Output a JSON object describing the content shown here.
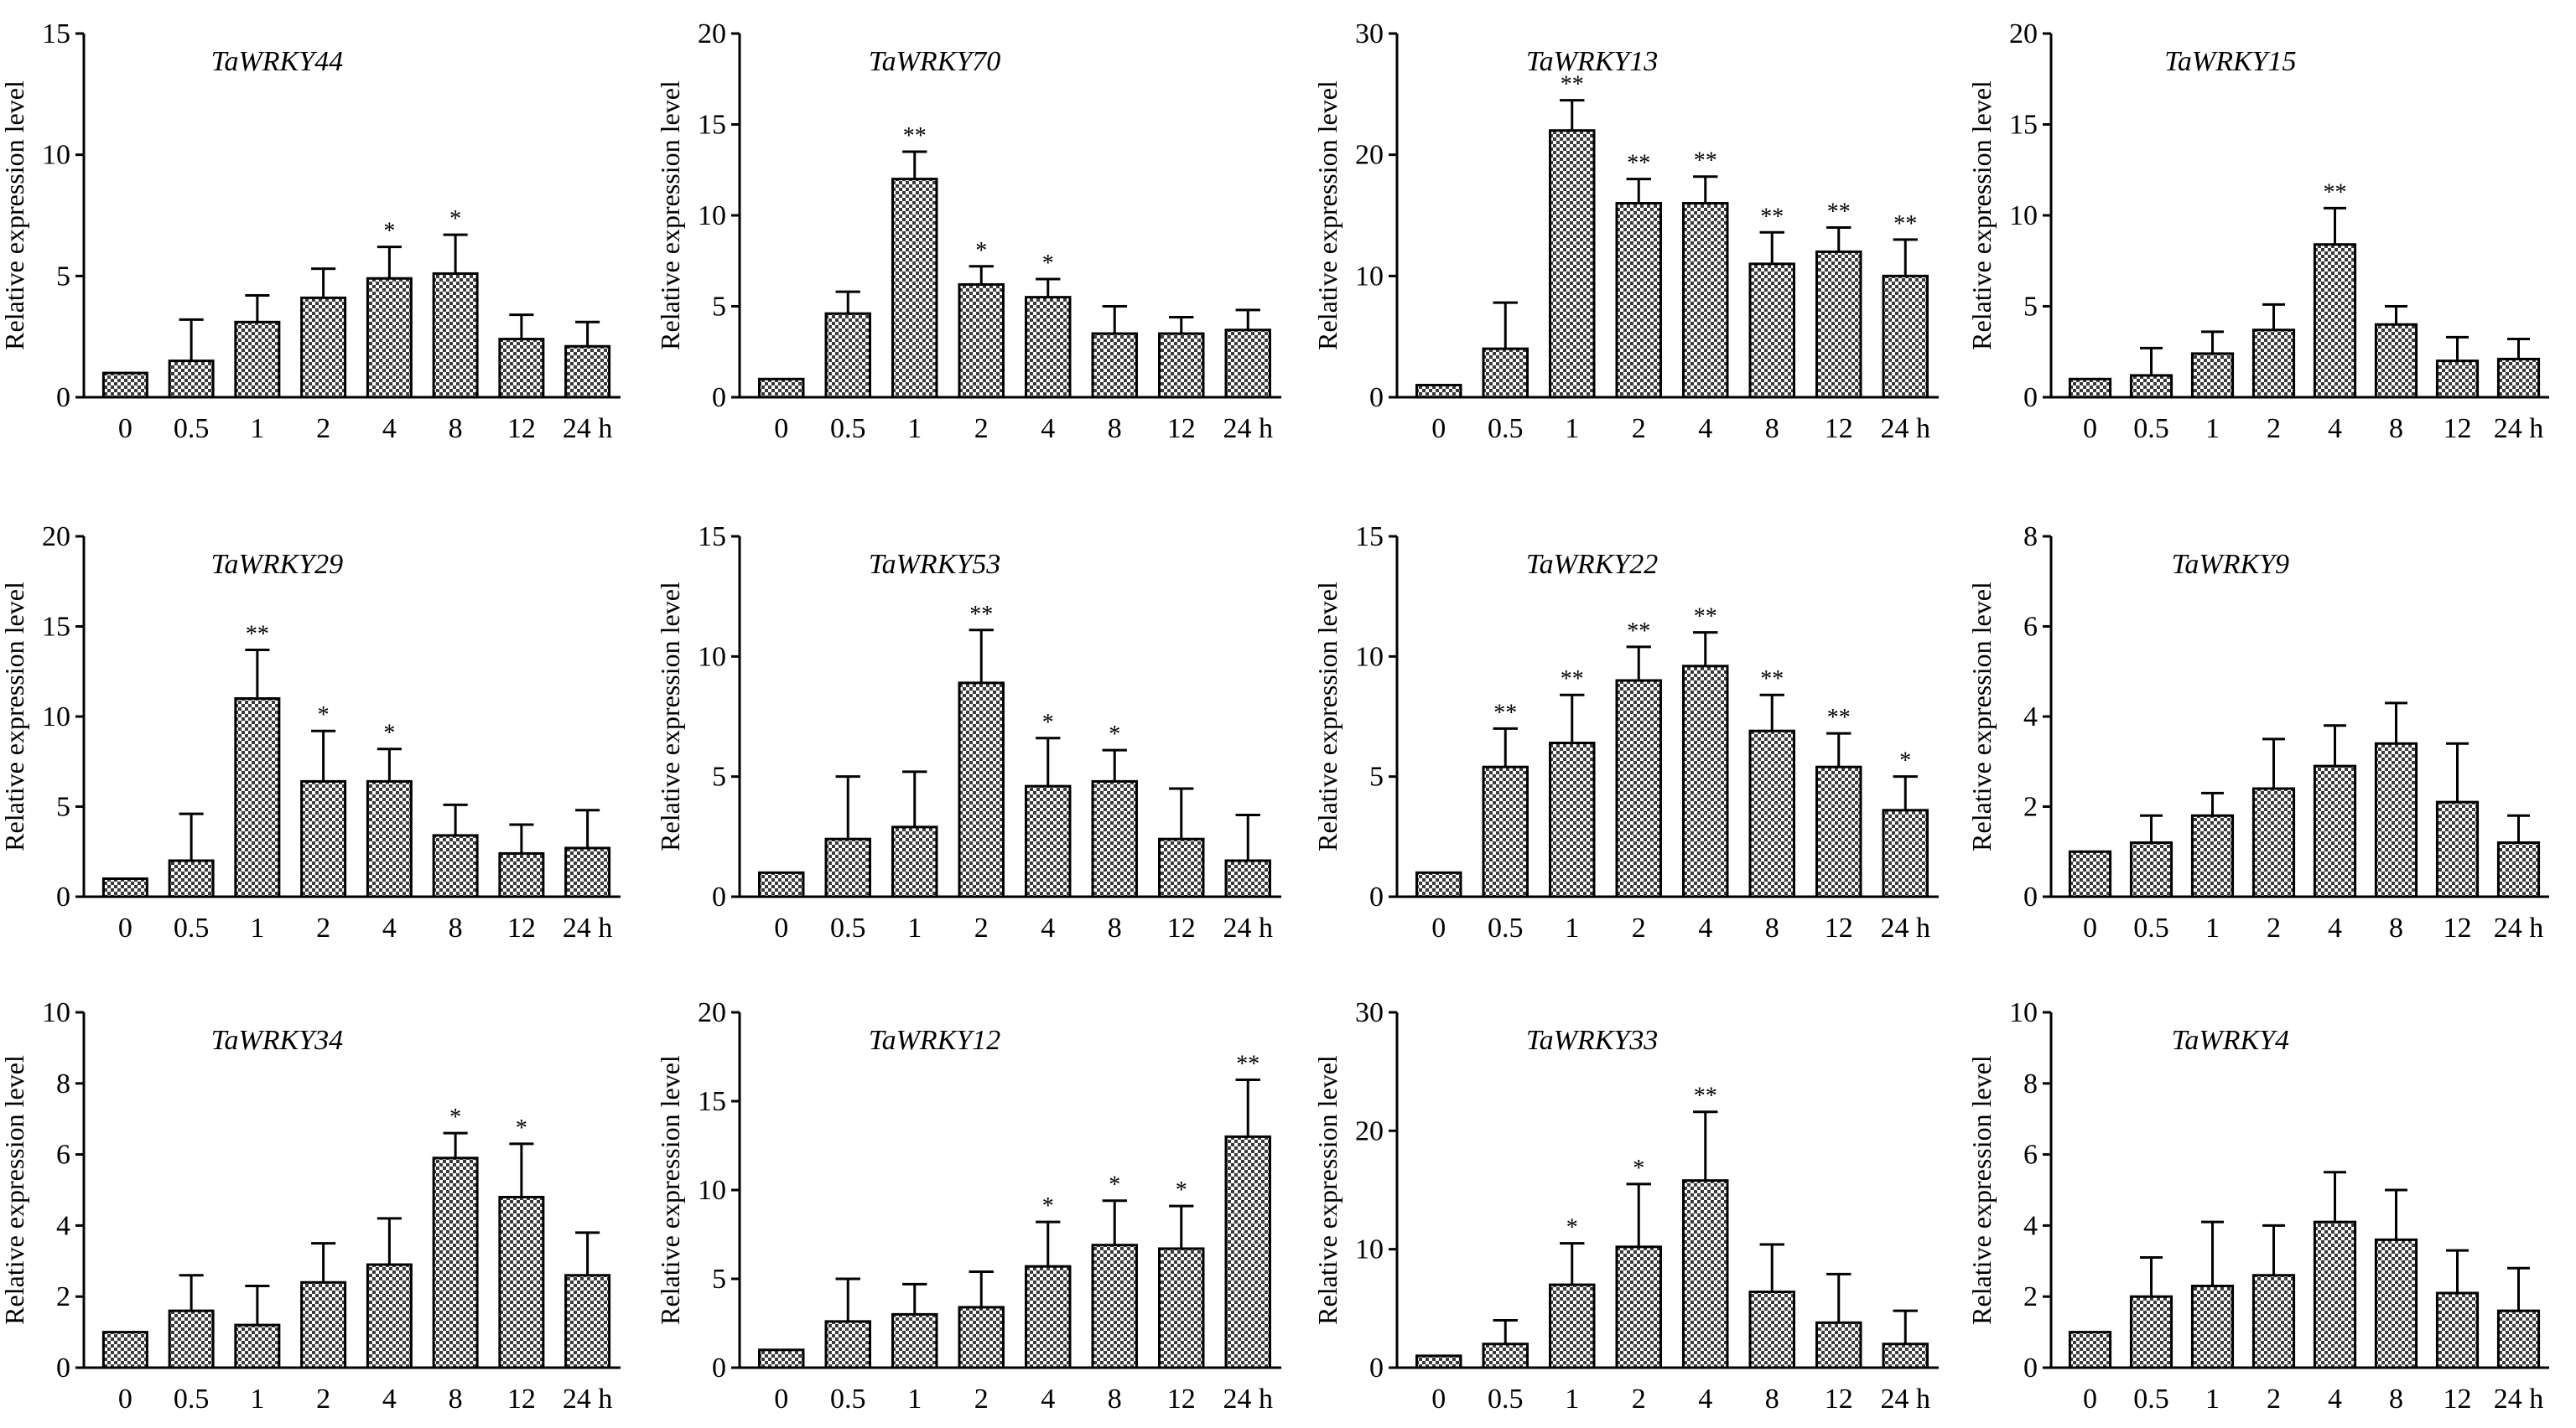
{
  "style": {
    "bar_fill": "#c8c8c8",
    "bar_stroke": "#000000",
    "axis_color": "#000000",
    "pattern": "checkered"
  },
  "chart_data": [
    {
      "type": "bar",
      "title": "TaWRKY44",
      "ylabel": "Relative expression level",
      "categories": [
        "0",
        "0.5",
        "1",
        "2",
        "4",
        "8",
        "12",
        "24 h"
      ],
      "ylim": [
        0,
        15
      ],
      "yticks": [
        0,
        5,
        10,
        15
      ],
      "values": [
        1,
        1.5,
        3.1,
        4.1,
        4.9,
        5.1,
        2.4,
        2.1
      ],
      "errors": [
        0,
        1.7,
        1.1,
        1.2,
        1.3,
        1.6,
        1.0,
        1.0
      ],
      "significance": [
        "",
        "",
        "",
        "",
        "*",
        "*",
        "",
        ""
      ]
    },
    {
      "type": "bar",
      "title": "TaWRKY70",
      "ylabel": "Relative expression level",
      "categories": [
        "0",
        "0.5",
        "1",
        "2",
        "4",
        "8",
        "12",
        "24 h"
      ],
      "ylim": [
        0,
        20
      ],
      "yticks": [
        0,
        5,
        10,
        15,
        20
      ],
      "values": [
        1,
        4.6,
        12,
        6.2,
        5.5,
        3.5,
        3.5,
        3.7
      ],
      "errors": [
        0,
        1.2,
        1.5,
        1.0,
        1.0,
        1.5,
        0.9,
        1.1
      ],
      "significance": [
        "",
        "",
        "**",
        "*",
        "*",
        "",
        "",
        ""
      ]
    },
    {
      "type": "bar",
      "title": "TaWRKY13",
      "ylabel": "Relative expression level",
      "categories": [
        "0",
        "0.5",
        "1",
        "2",
        "4",
        "8",
        "12",
        "24 h"
      ],
      "ylim": [
        0,
        30
      ],
      "yticks": [
        0,
        10,
        20,
        30
      ],
      "values": [
        1,
        4,
        22,
        16,
        16,
        11,
        12,
        10
      ],
      "errors": [
        0,
        3.8,
        2.5,
        2.0,
        2.2,
        2.6,
        2.0,
        3.0
      ],
      "significance": [
        "",
        "",
        "**",
        "**",
        "**",
        "**",
        "**",
        "**"
      ]
    },
    {
      "type": "bar",
      "title": "TaWRKY15",
      "ylabel": "Relative expression level",
      "categories": [
        "0",
        "0.5",
        "1",
        "2",
        "4",
        "8",
        "12",
        "24 h"
      ],
      "ylim": [
        0,
        20
      ],
      "yticks": [
        0,
        5,
        10,
        15,
        20
      ],
      "values": [
        1,
        1.2,
        2.4,
        3.7,
        8.4,
        4.0,
        2.0,
        2.1
      ],
      "errors": [
        0,
        1.5,
        1.2,
        1.4,
        2.0,
        1.0,
        1.3,
        1.1
      ],
      "significance": [
        "",
        "",
        "",
        "",
        "**",
        "",
        "",
        ""
      ]
    },
    {
      "type": "bar",
      "title": "TaWRKY29",
      "ylabel": "Relative expression level",
      "categories": [
        "0",
        "0.5",
        "1",
        "2",
        "4",
        "8",
        "12",
        "24 h"
      ],
      "ylim": [
        0,
        20
      ],
      "yticks": [
        0,
        5,
        10,
        15,
        20
      ],
      "values": [
        1,
        2,
        11,
        6.4,
        6.4,
        3.4,
        2.4,
        2.7
      ],
      "errors": [
        0,
        2.6,
        2.7,
        2.8,
        1.8,
        1.7,
        1.6,
        2.1
      ],
      "significance": [
        "",
        "",
        "**",
        "*",
        "*",
        "",
        "",
        ""
      ]
    },
    {
      "type": "bar",
      "title": "TaWRKY53",
      "ylabel": "Relative expression level",
      "categories": [
        "0",
        "0.5",
        "1",
        "2",
        "4",
        "8",
        "12",
        "24 h"
      ],
      "ylim": [
        0,
        15
      ],
      "yticks": [
        0,
        5,
        10,
        15
      ],
      "values": [
        1,
        2.4,
        2.9,
        8.9,
        4.6,
        4.8,
        2.4,
        1.5
      ],
      "errors": [
        0,
        2.6,
        2.3,
        2.2,
        2.0,
        1.3,
        2.1,
        1.9
      ],
      "significance": [
        "",
        "",
        "",
        "**",
        "*",
        "*",
        "",
        ""
      ]
    },
    {
      "type": "bar",
      "title": "TaWRKY22",
      "ylabel": "Relative expression level",
      "categories": [
        "0",
        "0.5",
        "1",
        "2",
        "4",
        "8",
        "12",
        "24 h"
      ],
      "ylim": [
        0,
        15
      ],
      "yticks": [
        0,
        5,
        10,
        15
      ],
      "values": [
        1,
        5.4,
        6.4,
        9,
        9.6,
        6.9,
        5.4,
        3.6
      ],
      "errors": [
        0,
        1.6,
        2.0,
        1.4,
        1.4,
        1.5,
        1.4,
        1.4
      ],
      "significance": [
        "",
        "**",
        "**",
        "**",
        "**",
        "**",
        "**",
        "*"
      ]
    },
    {
      "type": "bar",
      "title": "TaWRKY9",
      "ylabel": "Relative expression level",
      "categories": [
        "0",
        "0.5",
        "1",
        "2",
        "4",
        "8",
        "12",
        "24 h"
      ],
      "ylim": [
        0,
        8
      ],
      "yticks": [
        0,
        2,
        4,
        6,
        8
      ],
      "values": [
        1,
        1.2,
        1.8,
        2.4,
        2.9,
        3.4,
        2.1,
        1.2
      ],
      "errors": [
        0,
        0.6,
        0.5,
        1.1,
        0.9,
        0.9,
        1.3,
        0.6
      ],
      "significance": [
        "",
        "",
        "",
        "",
        "",
        "",
        "",
        ""
      ]
    },
    {
      "type": "bar",
      "title": "TaWRKY34",
      "ylabel": "Relative expression level",
      "categories": [
        "0",
        "0.5",
        "1",
        "2",
        "4",
        "8",
        "12",
        "24 h"
      ],
      "ylim": [
        0,
        10
      ],
      "yticks": [
        0,
        2,
        4,
        6,
        8,
        10
      ],
      "values": [
        1,
        1.6,
        1.2,
        2.4,
        2.9,
        5.9,
        4.8,
        2.6
      ],
      "errors": [
        0,
        1.0,
        1.1,
        1.1,
        1.3,
        0.7,
        1.5,
        1.2
      ],
      "significance": [
        "",
        "",
        "",
        "",
        "",
        "*",
        "*",
        ""
      ]
    },
    {
      "type": "bar",
      "title": "TaWRKY12",
      "ylabel": "Relative expression level",
      "categories": [
        "0",
        "0.5",
        "1",
        "2",
        "4",
        "8",
        "12",
        "24 h"
      ],
      "ylim": [
        0,
        20
      ],
      "yticks": [
        0,
        5,
        10,
        15,
        20
      ],
      "values": [
        1,
        2.6,
        3,
        3.4,
        5.7,
        6.9,
        6.7,
        13
      ],
      "errors": [
        0,
        2.4,
        1.7,
        2.0,
        2.5,
        2.5,
        2.4,
        3.2
      ],
      "significance": [
        "",
        "",
        "",
        "",
        "*",
        "*",
        "*",
        "**"
      ]
    },
    {
      "type": "bar",
      "title": "TaWRKY33",
      "ylabel": "Relative expression level",
      "categories": [
        "0",
        "0.5",
        "1",
        "2",
        "4",
        "8",
        "12",
        "24 h"
      ],
      "ylim": [
        0,
        30
      ],
      "yticks": [
        0,
        10,
        20,
        30
      ],
      "values": [
        1,
        2,
        7,
        10.2,
        15.8,
        6.4,
        3.8,
        2
      ],
      "errors": [
        0,
        2.0,
        3.5,
        5.3,
        5.8,
        4.0,
        4.1,
        2.8
      ],
      "significance": [
        "",
        "",
        "*",
        "*",
        "**",
        "",
        "",
        ""
      ]
    },
    {
      "type": "bar",
      "title": "TaWRKY4",
      "ylabel": "Relative expression level",
      "categories": [
        "0",
        "0.5",
        "1",
        "2",
        "4",
        "8",
        "12",
        "24 h"
      ],
      "ylim": [
        0,
        10
      ],
      "yticks": [
        0,
        2,
        4,
        6,
        8,
        10
      ],
      "values": [
        1,
        2,
        2.3,
        2.6,
        4.1,
        3.6,
        2.1,
        1.6
      ],
      "errors": [
        0,
        1.1,
        1.8,
        1.4,
        1.4,
        1.4,
        1.2,
        1.2
      ],
      "significance": [
        "",
        "",
        "",
        "",
        "",
        "",
        "",
        ""
      ]
    }
  ]
}
